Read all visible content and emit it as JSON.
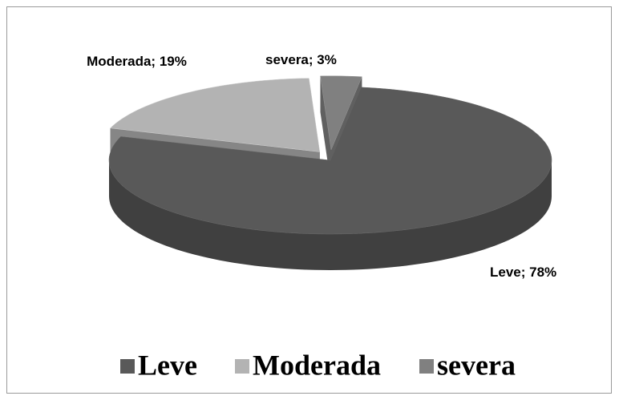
{
  "chart_data": {
    "type": "pie3d",
    "categories": [
      "Leve",
      "Moderada",
      "severa"
    ],
    "values": [
      78,
      19,
      3
    ],
    "value_labels": [
      "Leve; 78%",
      "Moderada; 19%",
      "severa; 3%"
    ],
    "colors": [
      "#595959",
      "#b3b3b3",
      "#808080"
    ],
    "legend": "bottom"
  }
}
